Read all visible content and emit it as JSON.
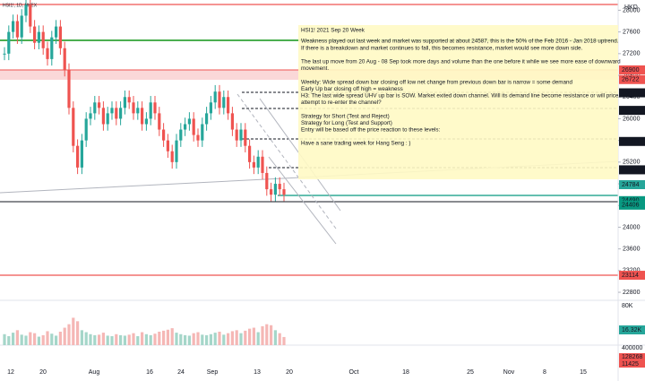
{
  "chart_data": {
    "type": "candlestick",
    "symbol": "HSI1!, 1D, HKEX",
    "currency": "HKD",
    "ylim": [
      22652,
      28189
    ],
    "yticks": [
      28000,
      27600,
      27200,
      26800,
      26400,
      26000,
      25600,
      25200,
      24800,
      24400,
      24000,
      23600,
      23200,
      22800
    ],
    "closes": [
      27200,
      27600,
      27800,
      27500,
      27900,
      28100,
      27700,
      27400,
      27600,
      27300,
      27100,
      27500,
      27700,
      27300,
      26900,
      26200,
      25500,
      25100,
      25600,
      26000,
      26100,
      26300,
      26200,
      25900,
      26100,
      26200,
      26000,
      26200,
      26400,
      26300,
      26100,
      26200,
      25900,
      26000,
      26300,
      26100,
      25800,
      25600,
      25400,
      25200,
      25600,
      25800,
      25900,
      26000,
      25700,
      25600,
      25900,
      26100,
      26300,
      26500,
      26200,
      26400,
      26100,
      25800,
      25600,
      25800,
      25500,
      25200,
      25100,
      25300,
      25000,
      24700,
      24600,
      24800,
      24700,
      24600
    ],
    "volume": [
      22000,
      18000,
      25000,
      30000,
      21000,
      19000,
      26000,
      24000,
      17000,
      20000,
      28000,
      23000,
      19000,
      27000,
      35000,
      42000,
      55000,
      48000,
      30000,
      26000,
      22000,
      20000,
      21000,
      25000,
      19000,
      18000,
      22000,
      20000,
      19000,
      21000,
      24000,
      18000,
      26000,
      22000,
      20000,
      23000,
      27000,
      29000,
      31000,
      34000,
      25000,
      22000,
      20000,
      19000,
      24000,
      26000,
      21000,
      20000,
      22000,
      25000,
      27000,
      21000,
      24000,
      28000,
      30000,
      24000,
      29000,
      33000,
      35000,
      26000,
      38000,
      42000,
      40000,
      30000,
      24000,
      16320
    ],
    "vlim": [
      0,
      90000
    ],
    "price_tags": [
      {
        "value": 26900,
        "color": "#ef5350"
      },
      {
        "value": 26722,
        "color": "#ef5350"
      },
      {
        "value": 26478,
        "color": "#131722"
      },
      {
        "value": 26154,
        "color": "#131722"
      },
      {
        "value": 25581,
        "color": "#131722"
      },
      {
        "value": 25058,
        "color": "#131722"
      },
      {
        "value": 24784,
        "color": "#26a69a"
      },
      {
        "value": 24490,
        "color": "#089981"
      },
      {
        "value": 24406,
        "color": "#089981"
      },
      {
        "value": 23114,
        "color": "#ef5350"
      }
    ],
    "volume_axis": [
      "80K",
      "16.32K"
    ],
    "lower_axis": [
      "400000",
      "128268",
      "11425"
    ],
    "x_labels": [
      "12",
      "20",
      "Aug",
      "16",
      "24",
      "Sep",
      "13",
      "20",
      "Oct",
      "18",
      "25",
      "Nov",
      "8",
      "15"
    ],
    "note_title": "HSI1!  2021 Sep 20 Week",
    "note_lines": [
      "Weakness played out last week and market was supported at about 24587, this is the 50% of the Feb 2016 - Jan 2018 uptrend.",
      "If there is a breakdown and market continues to fall, this becomes resistance, market would see more down side.",
      "",
      "The last up move from 20 Aug - 08 Sep took more days and volume than the one before it while we see more ease of downward",
      "movement.",
      "",
      "Weekly: Wide spread down bar closing off low net change from previous down bar is narrow = some demand",
      "Early Up bar closing off high = weakness",
      "H3: The last wide spread UHV up bar is SOW. Market exited down channel. Will its demand line become resistance or will price",
      "attempt to re-enter the channel?",
      "",
      "Strategy for Short (Test and Reject)",
      "Strategy for Long (Test and Support)",
      "Entry will be based off the price reaction to these levels:",
      "",
      "Have a sane trading week for Hang Seng : )"
    ]
  }
}
